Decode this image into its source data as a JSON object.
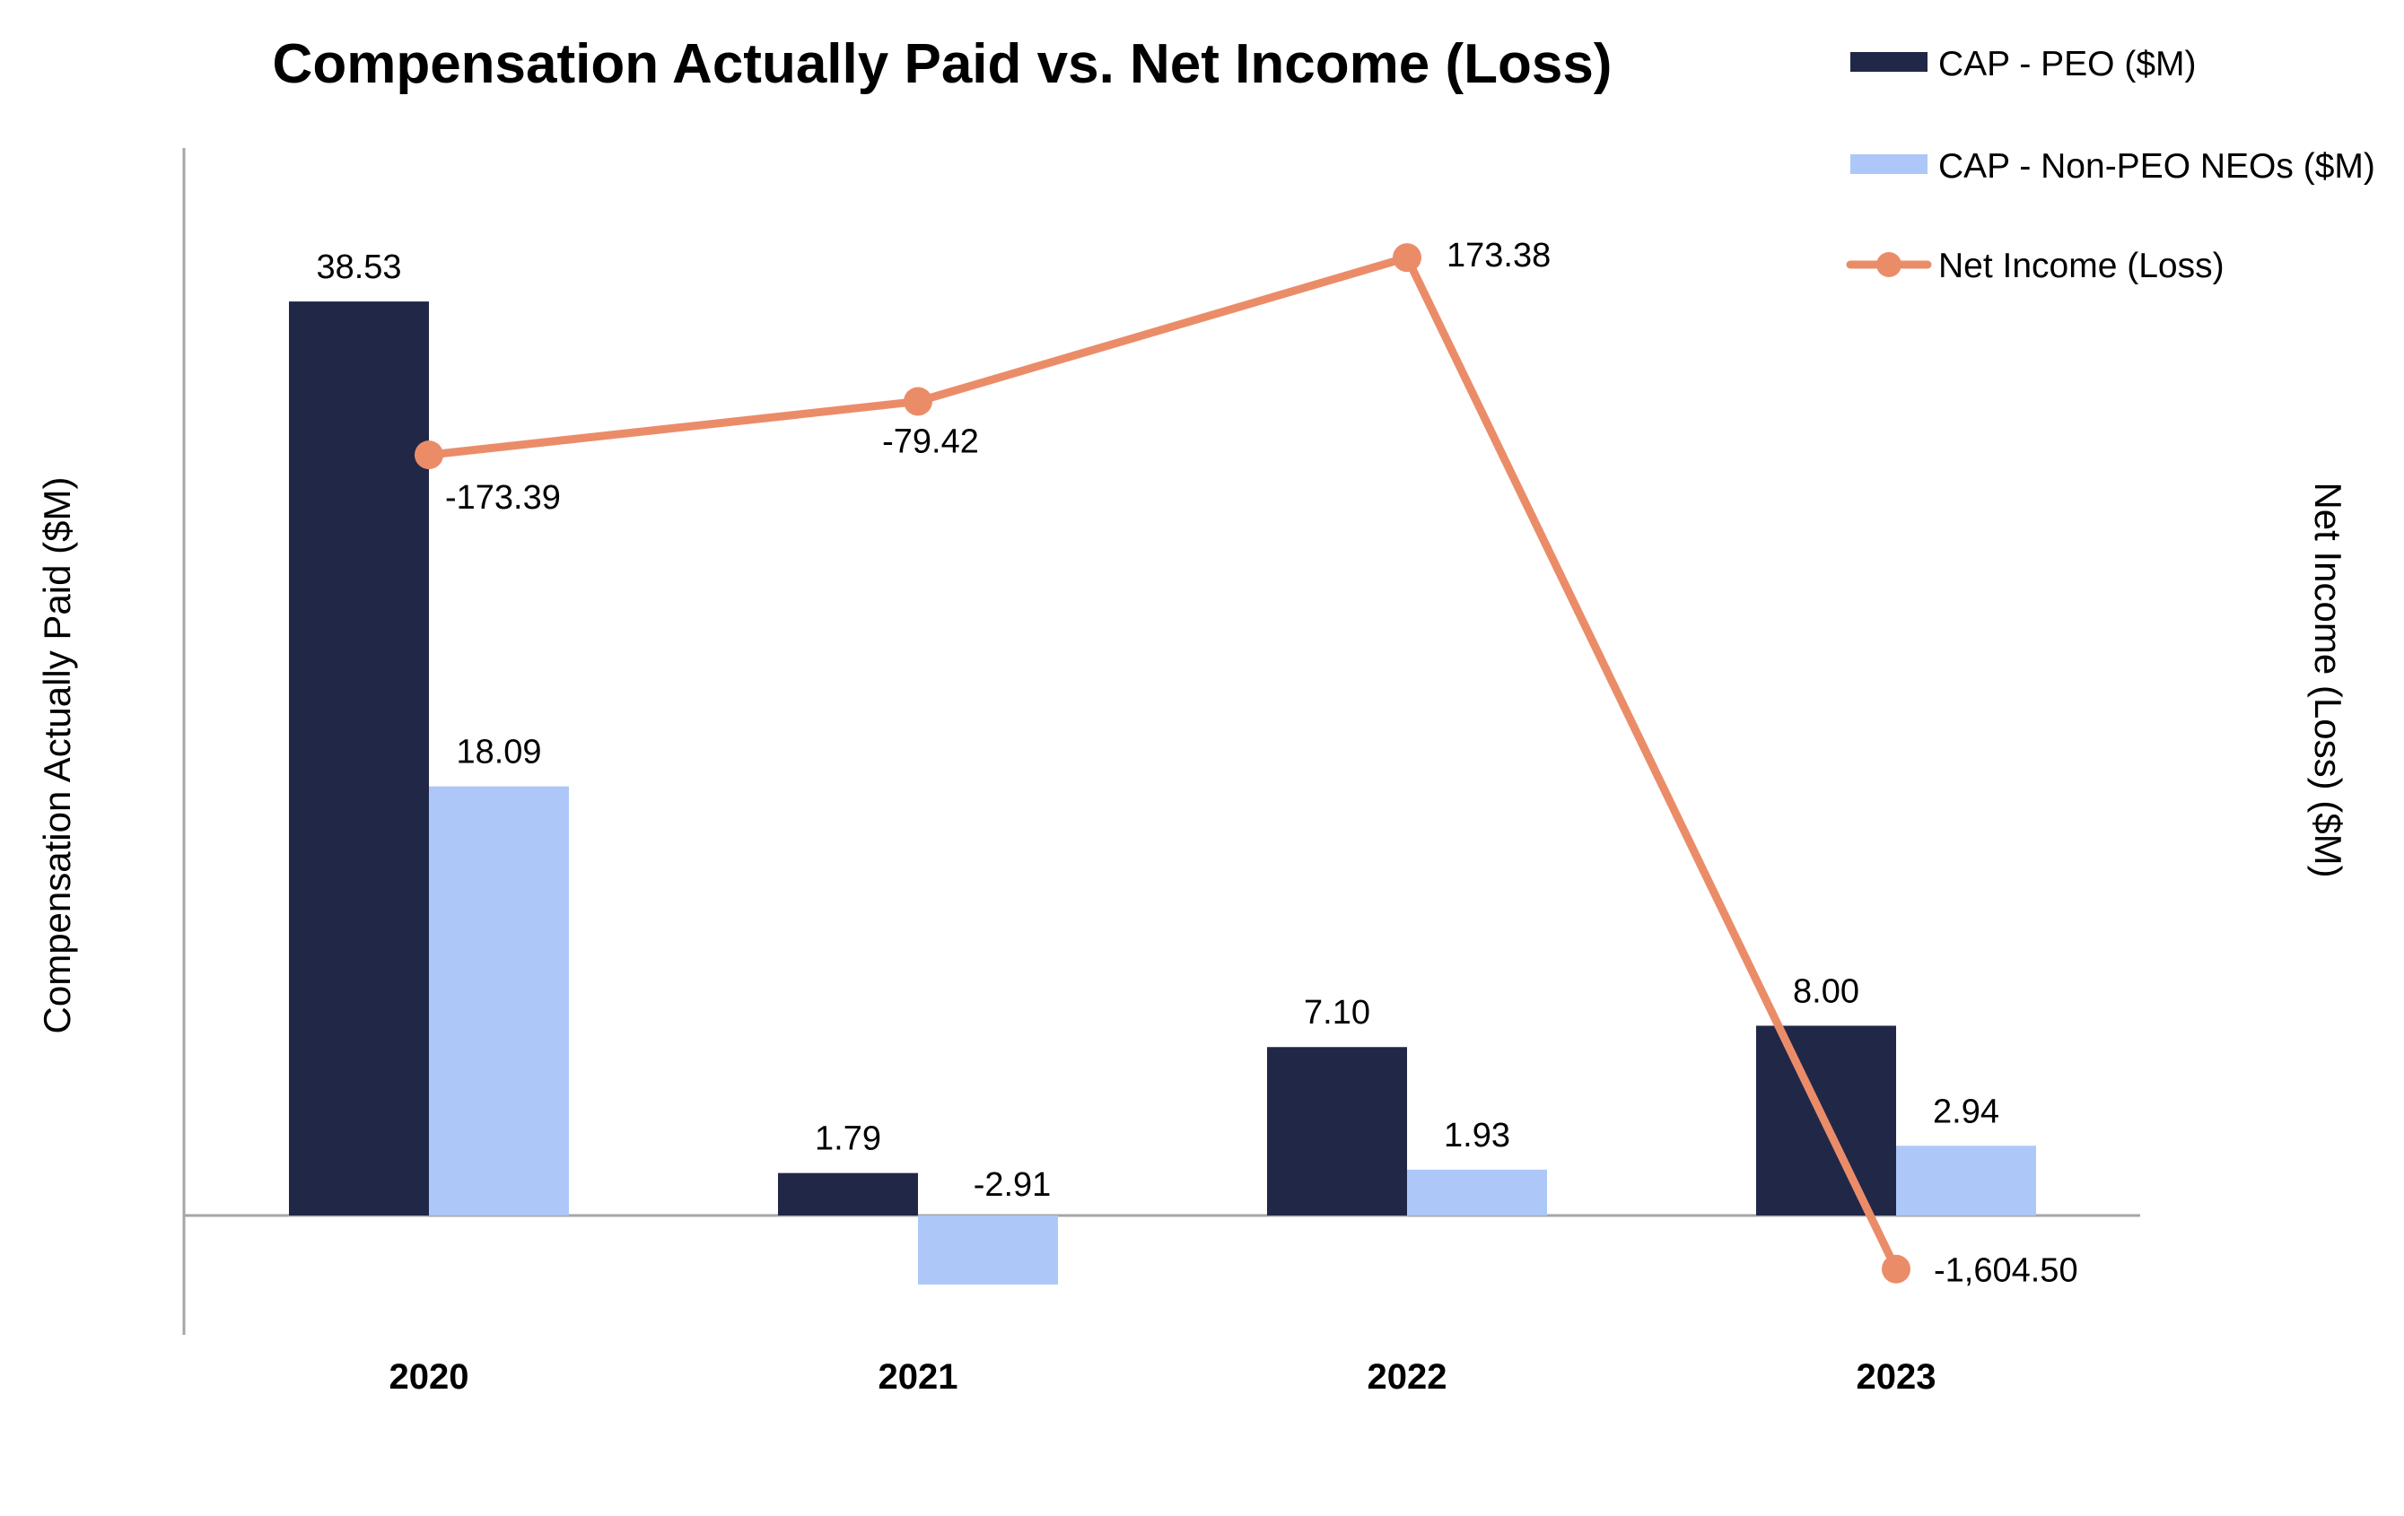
{
  "chart_data": {
    "type": "bar",
    "title": "Compensation Actually Paid vs. Net Income (Loss)",
    "xlabel": "",
    "ylabel": "Compensation Actually Paid ($M)",
    "y2label": "Net Income (Loss) ($M)",
    "categories": [
      "2020",
      "2021",
      "2022",
      "2023"
    ],
    "series": [
      {
        "name": "CAP - PEO ($M)",
        "kind": "bar",
        "axis": "left",
        "color": "#212747",
        "values": [
          38.53,
          1.79,
          7.1,
          8.0
        ],
        "labels": [
          "38.53",
          "1.79",
          "7.10",
          "8.00"
        ]
      },
      {
        "name": "CAP - Non-PEO NEOs ($M)",
        "kind": "bar",
        "axis": "left",
        "color": "#adc8f8",
        "values": [
          18.09,
          -2.91,
          1.93,
          2.94
        ],
        "labels": [
          "18.09",
          "-2.91",
          "1.93",
          "2.94"
        ]
      },
      {
        "name": "Net Income (Loss)",
        "kind": "line",
        "axis": "right",
        "color": "#eb8c69",
        "values": [
          -173.39,
          -79.42,
          173.38,
          -1604.5
        ],
        "labels": [
          "-173.39",
          "-79.42",
          "173.38",
          "-1,604.50"
        ]
      }
    ],
    "ylim": [
      -5.2,
      45
    ],
    "y2lim": [
      -1720,
      366
    ],
    "grid": false,
    "legend_position": "top-right"
  }
}
